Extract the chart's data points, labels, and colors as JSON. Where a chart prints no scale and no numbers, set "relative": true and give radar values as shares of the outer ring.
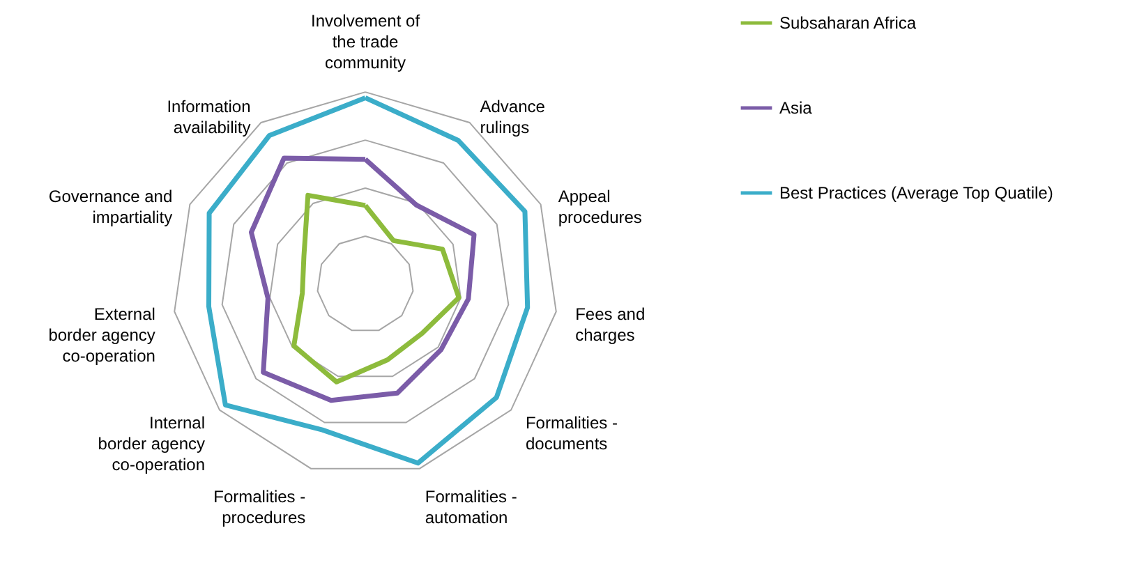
{
  "chart_data": {
    "type": "radar",
    "relative": true,
    "grid": true,
    "legend": "right",
    "marker": "none",
    "categories": [
      "Involvement of the trade community",
      "Advance rulings",
      "Appeal procedures",
      "Fees and charges",
      "Formalities - documents",
      "Formalities - automation",
      "Formalities - procedures",
      "Internal border agency co-operation",
      "External border agency co-operation",
      "Governance and impartiality",
      "Information availability"
    ],
    "series": [
      {
        "name": "Subsaharan Africa",
        "color": "#8dbb3c",
        "values": [
          0.41,
          0.27,
          0.44,
          0.49,
          0.39,
          0.41,
          0.53,
          0.49,
          0.33,
          0.35,
          0.55
        ]
      },
      {
        "name": "Asia",
        "color": "#7b5ca8",
        "values": [
          0.65,
          0.49,
          0.62,
          0.54,
          0.52,
          0.59,
          0.63,
          0.7,
          0.51,
          0.65,
          0.78
        ]
      },
      {
        "name": "Best Practices (Average Top Quatile)",
        "color": "#3badc9",
        "values": [
          0.97,
          0.89,
          0.91,
          0.85,
          0.9,
          0.97,
          0.79,
          0.96,
          0.82,
          0.89,
          0.92
        ]
      }
    ]
  }
}
